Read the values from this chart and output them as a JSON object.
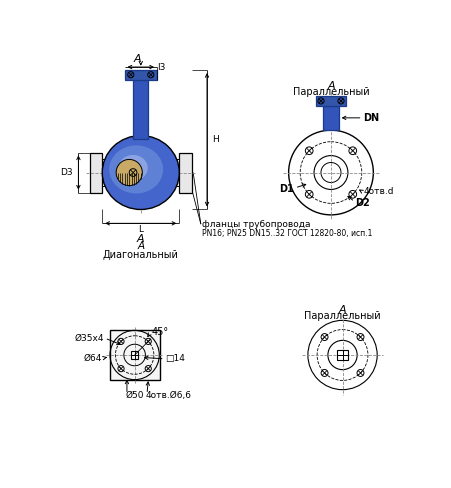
{
  "bg_color": "#ffffff",
  "lc": "#000000",
  "blue_dark": "#1a3a8a",
  "blue_stem": "#3355bb",
  "blue_body": "#4466cc",
  "blue_light": "#7799dd",
  "blue_grad": "#aabbee",
  "gray_fl": "#e8e8e8",
  "labels": {
    "A": "A",
    "diagonal": "Диагональный",
    "parallel": "Параллельный",
    "D3": "D3",
    "H": "H",
    "L": "L",
    "l3": "l3",
    "DN": "DN",
    "D1": "D1",
    "D2": "D2",
    "holes4d": "4отв.d",
    "flanges": "фланцы трубопровода",
    "gost": "PN16; PN25 DN15..32 ГОСТ 12820-80, исп.1",
    "d35x4": "Ø35х4",
    "d64": "Ø64",
    "d50": "Ø50",
    "holes4_66": "4отв.Ø6,6",
    "sq14": "□14",
    "angle45": "45°"
  }
}
